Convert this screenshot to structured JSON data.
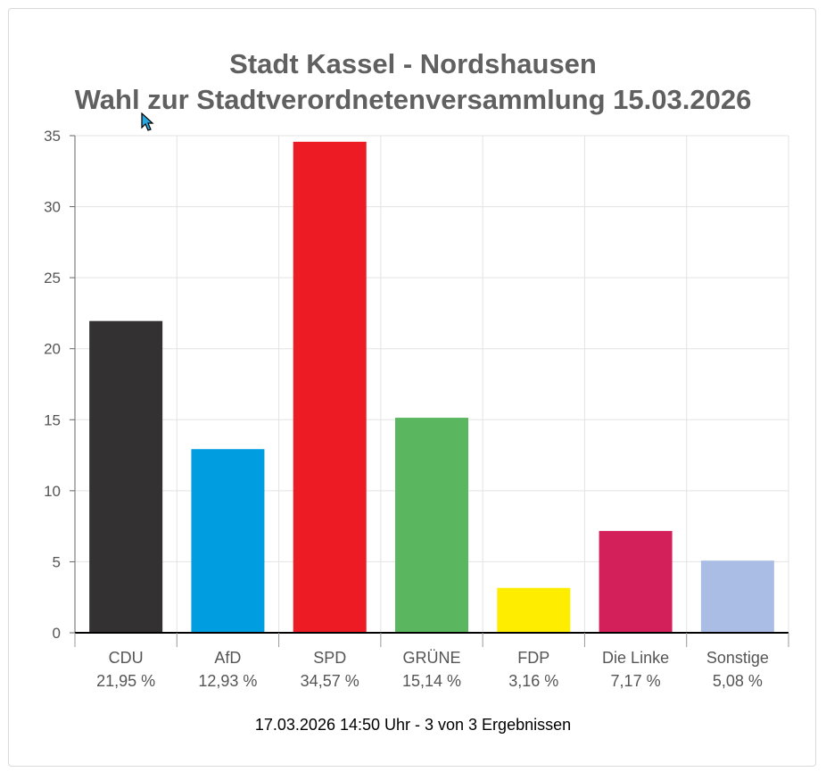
{
  "chart_data": {
    "type": "bar",
    "title": "Stadt Kassel - Nordshausen",
    "subtitle": "Wahl zur Stadtverordnetenversammlung 15.03.2026",
    "categories": [
      "CDU",
      "AfD",
      "SPD",
      "GRÜNE",
      "FDP",
      "Die Linke",
      "Sonstige"
    ],
    "values": [
      21.95,
      12.93,
      34.57,
      15.14,
      3.16,
      7.17,
      5.08
    ],
    "value_labels": [
      "21,95 %",
      "12,93 %",
      "34,57 %",
      "15,14 %",
      "3,16 %",
      "7,17 %",
      "5,08 %"
    ],
    "colors": [
      "#333132",
      "#009ee0",
      "#ed1c24",
      "#5ab65f",
      "#ffed00",
      "#d31f5a",
      "#aabde4"
    ],
    "yticks": [
      "0",
      "5",
      "10",
      "15",
      "20",
      "25",
      "30",
      "35"
    ],
    "ylim": [
      0,
      35
    ],
    "grid": true
  },
  "footer": "17.03.2026 14:50 Uhr - 3 von 3 Ergebnissen"
}
